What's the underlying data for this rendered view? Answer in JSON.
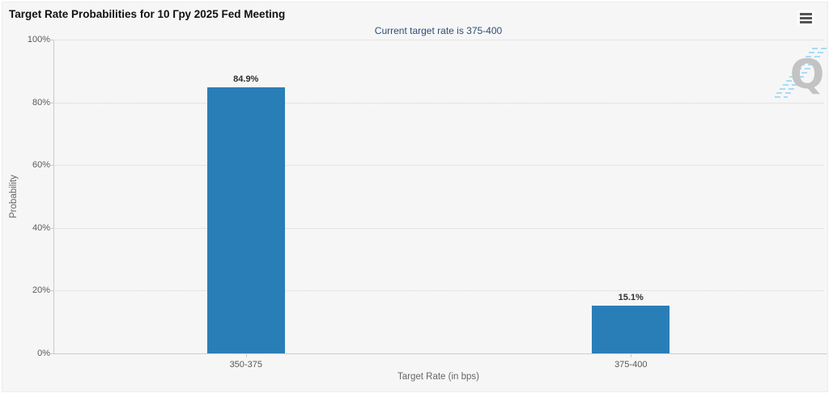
{
  "header": {
    "title": "Target Rate Probabilities for 10 Гру 2025 Fed Meeting",
    "menu_icon": "hamburger-icon"
  },
  "subtitle": "Current target rate is 375-400",
  "watermark_letter": "Q",
  "chart_data": {
    "type": "bar",
    "title": "Target Rate Probabilities for 10 Гру 2025 Fed Meeting",
    "subtitle": "Current target rate is 375-400",
    "categories": [
      "350-375",
      "375-400"
    ],
    "values": [
      84.9,
      15.1
    ],
    "value_labels": [
      "84.9%",
      "15.1%"
    ],
    "xlabel": "Target Rate (in bps)",
    "ylabel": "Probability",
    "ylim": [
      0,
      100
    ],
    "ytick_labels": [
      "0%",
      "20%",
      "40%",
      "60%",
      "80%",
      "100%"
    ],
    "grid": "dotted horizontal gridlines at every 20%",
    "legend": "none",
    "bar_color": "#2a7eb7"
  },
  "colors": {
    "background": "#f6f6f6",
    "bar": "#2a7eb7",
    "subtitle_text": "#2f4d75",
    "axis_line": "#c9c9c9",
    "tick_text": "#595959",
    "watermark_gray": "#c3c3c3",
    "watermark_blue": "#a9dcf5"
  }
}
